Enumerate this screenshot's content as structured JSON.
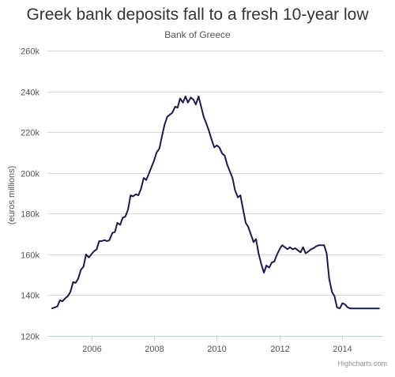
{
  "chart_data": {
    "type": "line",
    "title": "Greek bank deposits fall to a fresh 10-year low",
    "subtitle": "Bank of Greece",
    "xlabel": "",
    "ylabel": "(euros millions)",
    "xlim": [
      2004.6,
      2015.3
    ],
    "ylim": [
      120000,
      260000
    ],
    "x_ticks": [
      2006,
      2008,
      2010,
      2012,
      2014
    ],
    "x_tick_labels": [
      "2006",
      "2008",
      "2010",
      "2012",
      "2014"
    ],
    "y_ticks": [
      120000,
      140000,
      160000,
      180000,
      200000,
      220000,
      240000,
      260000
    ],
    "y_tick_labels": [
      "120k",
      "140k",
      "160k",
      "180k",
      "200k",
      "220k",
      "240k",
      "260k"
    ],
    "grid": true,
    "legend": "none",
    "line_color": "#1a1a52",
    "series": [
      {
        "name": "",
        "x": [
          2004.75,
          2004.92,
          2005.0,
          2005.08,
          2005.17,
          2005.25,
          2005.33,
          2005.42,
          2005.5,
          2005.58,
          2005.67,
          2005.75,
          2005.83,
          2005.92,
          2006.0,
          2006.08,
          2006.17,
          2006.25,
          2006.33,
          2006.42,
          2006.5,
          2006.58,
          2006.67,
          2006.75,
          2006.83,
          2006.92,
          2007.0,
          2007.08,
          2007.17,
          2007.25,
          2007.33,
          2007.42,
          2007.5,
          2007.58,
          2007.67,
          2007.75,
          2007.83,
          2007.92,
          2008.0,
          2008.08,
          2008.17,
          2008.25,
          2008.33,
          2008.42,
          2008.5,
          2008.58,
          2008.67,
          2008.75,
          2008.83,
          2008.92,
          2009.0,
          2009.08,
          2009.17,
          2009.25,
          2009.33,
          2009.42,
          2009.5,
          2009.58,
          2009.67,
          2009.75,
          2009.83,
          2009.92,
          2010.0,
          2010.08,
          2010.17,
          2010.25,
          2010.33,
          2010.42,
          2010.5,
          2010.58,
          2010.67,
          2010.75,
          2010.83,
          2010.92,
          2011.0,
          2011.08,
          2011.17,
          2011.25,
          2011.33,
          2011.42,
          2011.5,
          2011.58,
          2011.67,
          2011.75,
          2011.83,
          2011.92,
          2012.0,
          2012.08,
          2012.17,
          2012.25,
          2012.33,
          2012.42,
          2012.5,
          2012.58,
          2012.67,
          2012.75,
          2012.83,
          2012.92,
          2013.0,
          2013.08,
          2013.17,
          2013.25,
          2013.33,
          2013.42,
          2013.5,
          2013.58,
          2013.67,
          2013.75,
          2013.83,
          2013.92,
          2014.0,
          2014.08,
          2014.17,
          2014.25,
          2014.33,
          2014.42,
          2014.5,
          2014.58,
          2014.67,
          2014.75,
          2014.83,
          2014.92,
          2015.0,
          2015.08,
          2015.17
        ],
        "values": [
          133500,
          134500,
          137500,
          137000,
          138500,
          139500,
          141500,
          146500,
          146000,
          148000,
          152500,
          154000,
          160000,
          158500,
          160000,
          161500,
          162500,
          166500,
          166500,
          167000,
          166500,
          167000,
          170500,
          171000,
          175500,
          174500,
          178000,
          178500,
          182000,
          189000,
          188500,
          189500,
          189000,
          192000,
          197500,
          196500,
          199500,
          203000,
          206000,
          210000,
          212000,
          218000,
          223500,
          227500,
          228500,
          229500,
          232500,
          232000,
          236500,
          234500,
          237500,
          234500,
          237000,
          236000,
          233500,
          237500,
          232500,
          227500,
          224000,
          220500,
          216500,
          212500,
          213500,
          212500,
          209500,
          208500,
          204000,
          200500,
          197500,
          191500,
          188000,
          189000,
          182500,
          175500,
          173500,
          170000,
          166000,
          167500,
          160500,
          155000,
          151000,
          154500,
          153500,
          156000,
          156500,
          160000,
          162500,
          164500,
          163500,
          162500,
          163500,
          162500,
          163000,
          162000,
          161000,
          163500,
          160500,
          161500,
          162500,
          163000,
          164000,
          164500,
          164500,
          164500,
          160500,
          148000,
          141500,
          139500,
          134000,
          133500,
          136000,
          135500,
          134000,
          133500,
          133500,
          133500,
          133500,
          133500,
          133500,
          133500,
          133500,
          133500,
          133500,
          133500,
          133500
        ]
      }
    ],
    "credits": "Highcharts.com"
  }
}
